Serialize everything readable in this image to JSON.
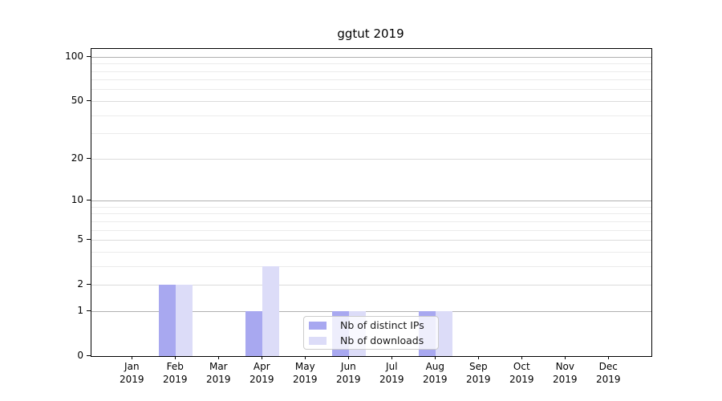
{
  "title": "ggtut 2019",
  "colors": {
    "distinct_ips": "#a8a8f0",
    "downloads": "#dcdcf8",
    "grid_dark": "#b0b0b0",
    "grid_mid": "#dbdbdb",
    "grid_minor": "#ebebeb",
    "axis": "#000000",
    "legend_border": "#cccccc"
  },
  "chart_data": {
    "type": "bar",
    "title": "ggtut 2019",
    "categories": [
      "Jan 2019",
      "Feb 2019",
      "Mar 2019",
      "Apr 2019",
      "May 2019",
      "Jun 2019",
      "Jul 2019",
      "Aug 2019",
      "Sep 2019",
      "Oct 2019",
      "Nov 2019",
      "Dec 2019"
    ],
    "x_tick_lines": [
      {
        "month": "Jan",
        "year": "2019"
      },
      {
        "month": "Feb",
        "year": "2019"
      },
      {
        "month": "Mar",
        "year": "2019"
      },
      {
        "month": "Apr",
        "year": "2019"
      },
      {
        "month": "May",
        "year": "2019"
      },
      {
        "month": "Jun",
        "year": "2019"
      },
      {
        "month": "Jul",
        "year": "2019"
      },
      {
        "month": "Aug",
        "year": "2019"
      },
      {
        "month": "Sep",
        "year": "2019"
      },
      {
        "month": "Oct",
        "year": "2019"
      },
      {
        "month": "Nov",
        "year": "2019"
      },
      {
        "month": "Dec",
        "year": "2019"
      }
    ],
    "series": [
      {
        "name": "Nb of distinct IPs",
        "color": "#a8a8f0",
        "values": [
          0,
          2,
          0,
          1,
          0,
          1,
          0,
          1,
          0,
          0,
          0,
          0
        ]
      },
      {
        "name": "Nb of downloads",
        "color": "#dcdcf8",
        "values": [
          0,
          2,
          0,
          3,
          0,
          1,
          0,
          1,
          0,
          0,
          0,
          0
        ]
      }
    ],
    "yscale": "log1p",
    "ylim": [
      0,
      113
    ],
    "y_ticks": [
      0,
      1,
      2,
      5,
      10,
      20,
      50,
      100
    ],
    "y_tick_labels": [
      "0",
      "1",
      "2",
      "5",
      "10",
      "20",
      "50",
      "100"
    ],
    "grid_dark_ticks": [
      1,
      10,
      100
    ],
    "grid_mid_ticks": [
      2,
      5,
      20,
      50
    ],
    "minor_gridlines": [
      3,
      4,
      6,
      7,
      8,
      9,
      30,
      40,
      60,
      70,
      80,
      90
    ],
    "grid": true,
    "legend_position": "lower-center",
    "xlabel": "",
    "ylabel": ""
  },
  "legend": {
    "entries": [
      {
        "label": "Nb of distinct IPs"
      },
      {
        "label": "Nb of downloads"
      }
    ]
  }
}
